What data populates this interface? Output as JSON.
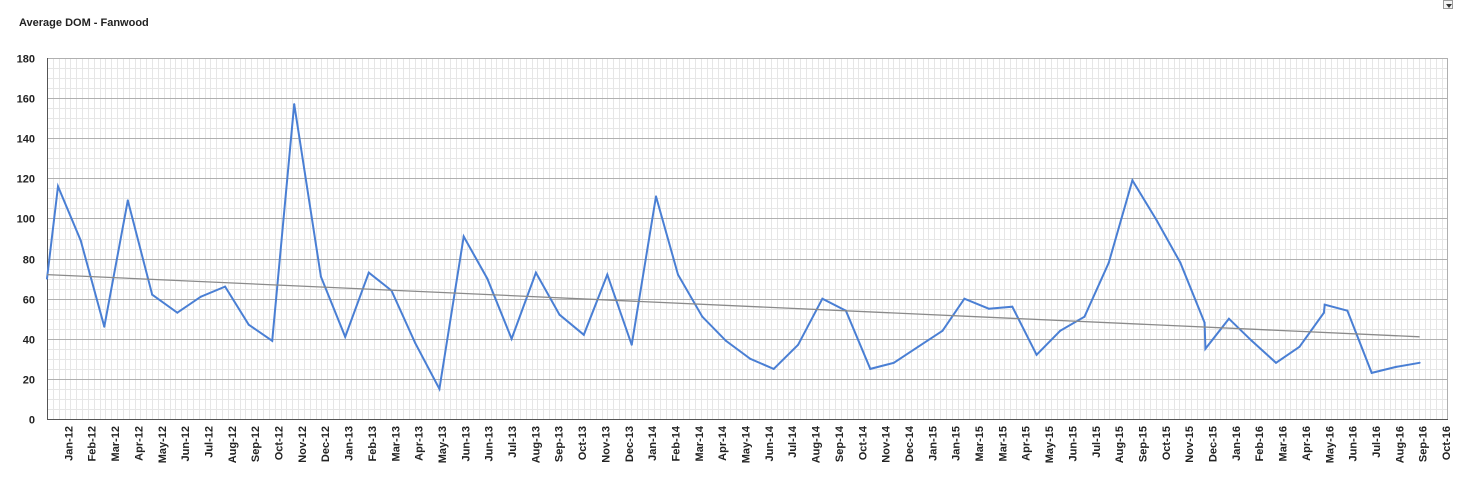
{
  "chart_data": {
    "type": "line",
    "title": "Average DOM - Fanwood",
    "xlabel": "",
    "ylabel": "",
    "ylim": [
      0,
      180
    ],
    "yticks": [
      0,
      20,
      40,
      60,
      80,
      100,
      120,
      140,
      160,
      180
    ],
    "grid": true,
    "legend": "none",
    "x_tick_labels": [
      "Jan-12",
      "Feb-12",
      "Mar-12",
      "Apr-12",
      "May-12",
      "Jun-12",
      "Jul-12",
      "Aug-12",
      "Sep-12",
      "Oct-12",
      "Nov-12",
      "Dec-12",
      "Jan-13",
      "Feb-13",
      "Mar-13",
      "Apr-13",
      "May-13",
      "Jun-13",
      "Jun-13",
      "Jul-13",
      "Aug-13",
      "Sep-13",
      "Oct-13",
      "Nov-13",
      "Dec-13",
      "Jan-14",
      "Feb-14",
      "Mar-14",
      "Apr-14",
      "May-14",
      "Jun-14",
      "Jul-14",
      "Aug-14",
      "Sep-14",
      "Oct-14",
      "Nov-14",
      "Dec-14",
      "Jan-15",
      "Jan-15",
      "Mar-15",
      "Mar-15",
      "Apr-15",
      "May-15",
      "Jun-15",
      "Jul-15",
      "Aug-15",
      "Sep-15",
      "Oct-15",
      "Nov-15",
      "Dec-15",
      "Jan-16",
      "Feb-16",
      "Mar-16",
      "Apr-16",
      "May-16",
      "Jun-16",
      "Jul-16",
      "Aug-16",
      "Sep-16",
      "Oct-16"
    ],
    "series": [
      {
        "values": [
          {
            "x": "2011-12-31",
            "y": 70
          },
          {
            "x": "2012-01-14",
            "y": 116
          },
          {
            "x": "2012-02-12",
            "y": 89
          },
          {
            "x": "2012-03-13",
            "y": 46
          },
          {
            "x": "2012-04-12",
            "y": 109
          },
          {
            "x": "2012-05-13",
            "y": 62
          },
          {
            "x": "2012-06-14",
            "y": 53
          },
          {
            "x": "2012-07-14",
            "y": 61
          },
          {
            "x": "2012-08-14",
            "y": 66
          },
          {
            "x": "2012-09-13",
            "y": 47
          },
          {
            "x": "2012-10-13",
            "y": 39
          },
          {
            "x": "2012-11-10",
            "y": 157
          },
          {
            "x": "2012-12-14",
            "y": 71
          },
          {
            "x": "2013-01-14",
            "y": 41
          },
          {
            "x": "2013-02-13",
            "y": 73
          },
          {
            "x": "2013-03-14",
            "y": 64
          },
          {
            "x": "2013-04-13",
            "y": 38
          },
          {
            "x": "2013-05-14",
            "y": 15
          },
          {
            "x": "2013-06-14",
            "y": 91
          },
          {
            "x": "2013-07-14",
            "y": 70
          },
          {
            "x": "2013-08-14",
            "y": 40
          },
          {
            "x": "2013-09-14",
            "y": 73
          },
          {
            "x": "2013-10-14",
            "y": 52
          },
          {
            "x": "2013-11-14",
            "y": 42
          },
          {
            "x": "2013-12-14",
            "y": 72
          },
          {
            "x": "2014-01-14",
            "y": 37
          },
          {
            "x": "2014-02-14",
            "y": 111
          },
          {
            "x": "2014-03-14",
            "y": 72
          },
          {
            "x": "2014-04-14",
            "y": 51
          },
          {
            "x": "2014-05-14",
            "y": 39
          },
          {
            "x": "2014-06-14",
            "y": 30
          },
          {
            "x": "2014-07-14",
            "y": 25
          },
          {
            "x": "2014-08-14",
            "y": 37
          },
          {
            "x": "2014-09-14",
            "y": 60
          },
          {
            "x": "2014-10-14",
            "y": 54
          },
          {
            "x": "2014-11-14",
            "y": 25
          },
          {
            "x": "2014-12-14",
            "y": 28
          },
          {
            "x": "2015-01-14",
            "y": 36
          },
          {
            "x": "2015-02-14",
            "y": 44
          },
          {
            "x": "2015-03-14",
            "y": 60
          },
          {
            "x": "2015-04-14",
            "y": 55
          },
          {
            "x": "2015-05-14",
            "y": 56
          },
          {
            "x": "2015-06-14",
            "y": 32
          },
          {
            "x": "2015-07-14",
            "y": 44
          },
          {
            "x": "2015-08-14",
            "y": 51
          },
          {
            "x": "2015-09-14",
            "y": 78
          },
          {
            "x": "2015-10-14",
            "y": 119
          },
          {
            "x": "2015-11-14",
            "y": 99
          },
          {
            "x": "2015-12-14",
            "y": 78
          },
          {
            "x": "2016-01-14",
            "y": 48
          },
          {
            "x": "2016-01-15",
            "y": 35
          },
          {
            "x": "2016-02-14",
            "y": 50
          },
          {
            "x": "2016-03-14",
            "y": 39
          },
          {
            "x": "2016-04-14",
            "y": 28
          },
          {
            "x": "2016-05-14",
            "y": 36
          },
          {
            "x": "2016-06-14",
            "y": 53
          },
          {
            "x": "2016-06-15",
            "y": 57
          },
          {
            "x": "2016-07-14",
            "y": 54
          },
          {
            "x": "2016-08-14",
            "y": 23
          },
          {
            "x": "2016-09-14",
            "y": 26
          },
          {
            "x": "2016-10-14",
            "y": 28
          }
        ],
        "color": "#4a7fd4"
      },
      {
        "type": "trendline",
        "values": [
          {
            "x": "2011-12-31",
            "y": 72
          },
          {
            "x": "2016-10-14",
            "y": 41
          }
        ],
        "color": "#8a8a8a"
      }
    ]
  },
  "colors": {
    "line": "#4a7fd4",
    "trend": "#8a8a8a",
    "major_grid": "#b0b0b0",
    "minor_grid": "#e6e6e6",
    "axis": "#555555"
  },
  "menu_icon": "triangle-down-icon"
}
